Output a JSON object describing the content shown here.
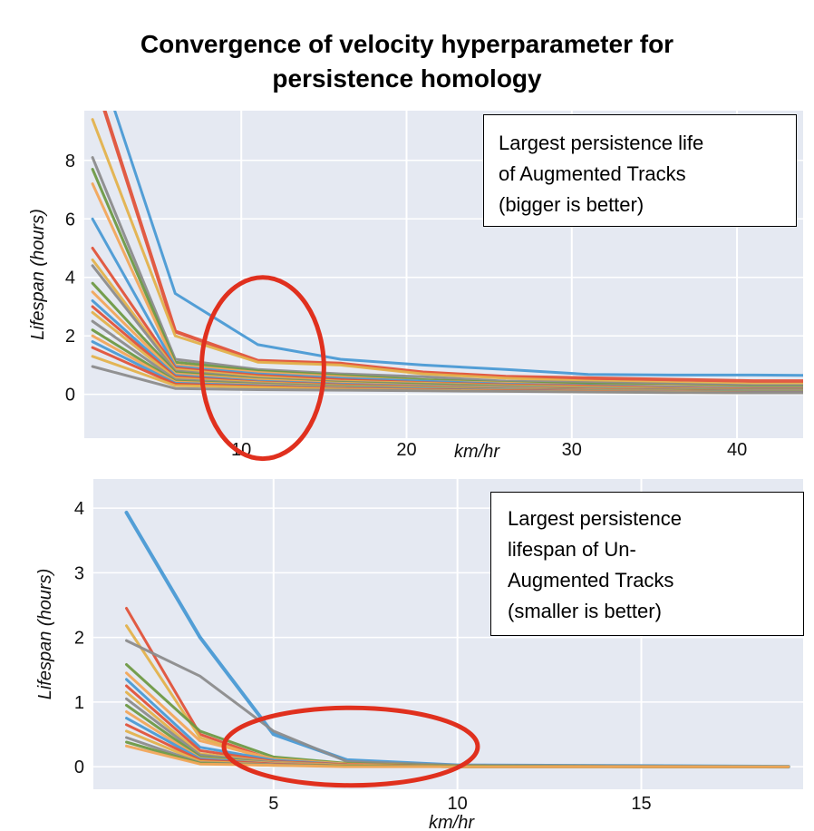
{
  "title_line1": "Convergence of velocity hyperparameter for",
  "title_line2": "persistence homology",
  "colors": {
    "panel_bg": "#e5e9f2",
    "grid": "#ffffff",
    "ellipse": "#e0301e",
    "palette": [
      "#4a9ad4",
      "#e0533a",
      "#e3b24c",
      "#8c8c8c",
      "#6e9a45",
      "#f2a65a"
    ]
  },
  "chart_data": [
    {
      "type": "line",
      "xlabel": "km/hr",
      "ylabel": "Lifespan (hours)",
      "xticks": [
        10,
        20,
        30,
        40
      ],
      "yticks": [
        0,
        2,
        4,
        6,
        8
      ],
      "xlim": [
        0.5,
        44
      ],
      "ylim": [
        -1.5,
        9.7
      ],
      "grid": true,
      "annotation": {
        "lines": [
          "Largest persistence life",
          "of Augmented Tracks",
          "(bigger is better)"
        ],
        "placement": "top-right"
      },
      "highlight_ellipse": {
        "cx": 11.3,
        "cy": 0.9,
        "rx": 3.7,
        "ry": 3.1
      },
      "x": [
        1,
        6,
        11,
        16,
        21,
        26,
        31,
        36,
        41,
        44
      ],
      "series": [
        {
          "values": [
            12.0,
            3.45,
            1.7,
            1.2,
            1.0,
            0.85,
            0.68,
            0.66,
            0.66,
            0.65
          ],
          "width": 3
        },
        {
          "values": [
            11.0,
            2.15,
            1.15,
            1.05,
            0.75,
            0.6,
            0.55,
            0.5,
            0.45,
            0.45
          ],
          "width": 4
        },
        {
          "values": [
            9.4,
            2.0,
            1.1,
            1.0,
            0.7,
            0.55,
            0.45,
            0.4,
            0.35,
            0.35
          ],
          "width": 3
        },
        {
          "values": [
            8.1,
            1.2,
            0.85,
            0.7,
            0.6,
            0.45,
            0.4,
            0.35,
            0.3,
            0.3
          ],
          "width": 3
        },
        {
          "values": [
            7.7,
            1.1,
            0.8,
            0.65,
            0.5,
            0.4,
            0.35,
            0.3,
            0.25,
            0.25
          ],
          "width": 3
        },
        {
          "values": [
            7.2,
            1.0,
            0.75,
            0.6,
            0.45,
            0.38,
            0.3,
            0.28,
            0.22,
            0.22
          ],
          "width": 3
        },
        {
          "values": [
            6.0,
            0.95,
            0.7,
            0.55,
            0.45,
            0.35,
            0.3,
            0.25,
            0.2,
            0.2
          ],
          "width": 3
        },
        {
          "values": [
            5.0,
            0.9,
            0.65,
            0.5,
            0.4,
            0.32,
            0.28,
            0.22,
            0.18,
            0.18
          ],
          "width": 3
        },
        {
          "values": [
            4.6,
            0.85,
            0.6,
            0.45,
            0.38,
            0.3,
            0.25,
            0.2,
            0.16,
            0.16
          ],
          "width": 3
        },
        {
          "values": [
            4.4,
            0.8,
            0.55,
            0.42,
            0.35,
            0.28,
            0.22,
            0.18,
            0.15,
            0.15
          ],
          "width": 3
        },
        {
          "values": [
            3.8,
            0.75,
            0.52,
            0.4,
            0.33,
            0.26,
            0.2,
            0.17,
            0.14,
            0.14
          ],
          "width": 3
        },
        {
          "values": [
            3.5,
            0.7,
            0.5,
            0.38,
            0.3,
            0.24,
            0.19,
            0.16,
            0.13,
            0.13
          ],
          "width": 3
        },
        {
          "values": [
            3.2,
            0.65,
            0.45,
            0.35,
            0.28,
            0.22,
            0.18,
            0.15,
            0.12,
            0.12
          ],
          "width": 3
        },
        {
          "values": [
            3.0,
            0.6,
            0.42,
            0.32,
            0.26,
            0.2,
            0.17,
            0.14,
            0.11,
            0.11
          ],
          "width": 3
        },
        {
          "values": [
            2.8,
            0.55,
            0.4,
            0.3,
            0.24,
            0.19,
            0.15,
            0.13,
            0.1,
            0.1
          ],
          "width": 3
        },
        {
          "values": [
            2.5,
            0.5,
            0.37,
            0.28,
            0.22,
            0.18,
            0.14,
            0.12,
            0.1,
            0.1
          ],
          "width": 3
        },
        {
          "values": [
            2.2,
            0.45,
            0.34,
            0.26,
            0.2,
            0.16,
            0.13,
            0.11,
            0.09,
            0.09
          ],
          "width": 3
        },
        {
          "values": [
            2.0,
            0.42,
            0.32,
            0.24,
            0.19,
            0.15,
            0.12,
            0.1,
            0.08,
            0.08
          ],
          "width": 3
        },
        {
          "values": [
            1.8,
            0.38,
            0.3,
            0.22,
            0.18,
            0.14,
            0.11,
            0.09,
            0.07,
            0.07
          ],
          "width": 3
        },
        {
          "values": [
            1.6,
            0.35,
            0.27,
            0.2,
            0.16,
            0.13,
            0.1,
            0.08,
            0.06,
            0.06
          ],
          "width": 3
        },
        {
          "values": [
            1.3,
            0.3,
            0.24,
            0.18,
            0.14,
            0.11,
            0.09,
            0.07,
            0.05,
            0.05
          ],
          "width": 3
        },
        {
          "values": [
            0.95,
            0.2,
            0.16,
            0.14,
            0.12,
            0.1,
            0.08,
            0.06,
            0.05,
            0.05
          ],
          "width": 3
        }
      ]
    },
    {
      "type": "line",
      "xlabel": "km/hr",
      "ylabel": "Lifespan (hours)",
      "xticks": [
        5,
        10,
        15
      ],
      "yticks": [
        0,
        1,
        2,
        3,
        4
      ],
      "xlim": [
        0.1,
        19.4
      ],
      "ylim": [
        -0.35,
        4.45
      ],
      "grid": true,
      "annotation": {
        "lines": [
          "Largest persistence",
          "lifespan of Un-",
          "Augmented Tracks",
          "(smaller is better)"
        ],
        "placement": "top-right"
      },
      "highlight_ellipse": {
        "cx": 7.1,
        "cy": 0.31,
        "rx": 3.45,
        "ry": 0.6
      },
      "x": [
        1,
        3,
        5,
        7,
        10,
        15,
        19
      ],
      "series": [
        {
          "values": [
            3.93,
            2.0,
            0.5,
            0.1,
            0.02,
            0.01,
            0.0
          ],
          "width": 4
        },
        {
          "values": [
            2.45,
            0.5,
            0.1,
            0.05,
            0.01,
            0.0,
            0.0
          ],
          "width": 3
        },
        {
          "values": [
            2.18,
            0.45,
            0.08,
            0.04,
            0.01,
            0.0,
            0.0
          ],
          "width": 3
        },
        {
          "values": [
            1.95,
            1.4,
            0.55,
            0.08,
            0.02,
            0.01,
            0.0
          ],
          "width": 3
        },
        {
          "values": [
            1.58,
            0.55,
            0.15,
            0.05,
            0.01,
            0.0,
            0.0
          ],
          "width": 3
        },
        {
          "values": [
            1.45,
            0.4,
            0.12,
            0.04,
            0.01,
            0.0,
            0.0
          ],
          "width": 3
        },
        {
          "values": [
            1.35,
            0.3,
            0.1,
            0.03,
            0.01,
            0.0,
            0.0
          ],
          "width": 3
        },
        {
          "values": [
            1.25,
            0.25,
            0.08,
            0.03,
            0.01,
            0.0,
            0.0
          ],
          "width": 3
        },
        {
          "values": [
            1.15,
            0.2,
            0.07,
            0.02,
            0.01,
            0.0,
            0.0
          ],
          "width": 3
        },
        {
          "values": [
            1.05,
            0.18,
            0.06,
            0.02,
            0.01,
            0.0,
            0.0
          ],
          "width": 3
        },
        {
          "values": [
            0.95,
            0.15,
            0.05,
            0.02,
            0.01,
            0.0,
            0.0
          ],
          "width": 3
        },
        {
          "values": [
            0.85,
            0.13,
            0.05,
            0.02,
            0.0,
            0.0,
            0.0
          ],
          "width": 3
        },
        {
          "values": [
            0.75,
            0.12,
            0.04,
            0.01,
            0.0,
            0.0,
            0.0
          ],
          "width": 3
        },
        {
          "values": [
            0.65,
            0.1,
            0.04,
            0.01,
            0.0,
            0.0,
            0.0
          ],
          "width": 3
        },
        {
          "values": [
            0.55,
            0.08,
            0.03,
            0.01,
            0.0,
            0.0,
            0.0
          ],
          "width": 3
        },
        {
          "values": [
            0.45,
            0.06,
            0.03,
            0.01,
            0.0,
            0.0,
            0.0
          ],
          "width": 3
        },
        {
          "values": [
            0.38,
            0.05,
            0.02,
            0.01,
            0.0,
            0.0,
            0.0
          ],
          "width": 3
        },
        {
          "values": [
            0.32,
            0.04,
            0.02,
            0.0,
            0.0,
            0.0,
            0.0
          ],
          "width": 3
        }
      ]
    }
  ]
}
